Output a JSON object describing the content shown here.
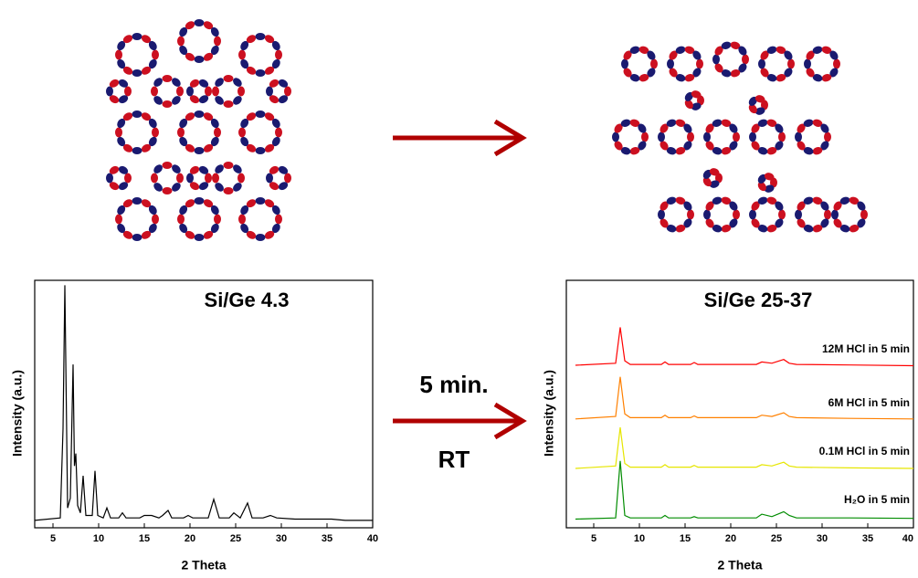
{
  "chart_data": [
    {
      "type": "line",
      "title": "Si/Ge 4.3",
      "x_label": "2 Theta",
      "y_label": "Intensity (a.u.)",
      "xlim": [
        3,
        40
      ],
      "ylim": [
        0,
        100
      ],
      "xticks": [
        5,
        10,
        15,
        20,
        25,
        30,
        35,
        40
      ],
      "x": [
        3,
        5.8,
        6.1,
        6.3,
        6.6,
        6.9,
        7.2,
        7.35,
        7.5,
        7.7,
        8.0,
        8.3,
        8.6,
        9.3,
        9.6,
        9.9,
        10.5,
        10.9,
        11.3,
        12.2,
        12.6,
        13.0,
        14.5,
        15.0,
        15.8,
        16.6,
        17.0,
        17.6,
        18.0,
        19.3,
        19.8,
        20.3,
        21.0,
        22.0,
        22.6,
        23.2,
        24.3,
        24.8,
        25.5,
        26.3,
        26.8,
        28.0,
        28.8,
        29.5,
        31.5,
        33.5,
        35.5,
        37.0,
        40
      ],
      "series": [
        {
          "color": "#000000",
          "values": [
            3,
            4,
            40,
            98,
            8,
            12,
            66,
            25,
            30,
            9,
            6,
            21,
            5,
            5,
            23,
            5,
            4,
            8,
            4,
            4,
            6,
            4,
            4,
            5,
            5,
            4,
            5,
            7,
            4,
            4,
            5,
            4,
            4,
            4,
            11.5,
            4,
            4,
            6,
            4,
            10,
            4,
            4,
            5,
            4,
            3.5,
            3.5,
            3.5,
            3,
            3
          ]
        }
      ]
    },
    {
      "type": "line",
      "title": "Si/Ge 25-37",
      "x_label": "2 Theta",
      "y_label": "Intensity (a.u.)",
      "xlim": [
        2,
        40
      ],
      "ylim": [
        0,
        100
      ],
      "xticks": [
        5,
        10,
        15,
        20,
        25,
        30,
        35,
        40
      ],
      "x": [
        3,
        7.4,
        7.9,
        8.4,
        9.0,
        12.4,
        12.8,
        13.2,
        15.6,
        16.0,
        16.4,
        22.8,
        23.4,
        24.5,
        25.8,
        26.4,
        27.2,
        33,
        40
      ],
      "series": [
        {
          "name": "12M HCl in 5 min",
          "color": "#ff0000",
          "values": [
            65.7,
            66.5,
            81,
            67.5,
            66,
            66,
            67,
            66,
            66,
            66.8,
            66,
            66,
            67,
            66.5,
            68,
            66.5,
            66,
            65.8,
            65.5
          ]
        },
        {
          "name": "6M HCl in 5 min",
          "color": "#ff8000",
          "values": [
            44,
            45,
            61,
            46,
            44.5,
            44.5,
            45.5,
            44.5,
            44.5,
            45.2,
            44.5,
            44.5,
            45.5,
            45,
            46.5,
            45,
            44.5,
            44.2,
            44
          ]
        },
        {
          "name": "0.1M HCl in 5 min",
          "color": "#e6e600",
          "values": [
            24,
            25,
            40.6,
            26,
            24.5,
            24.5,
            25.5,
            24.5,
            24.5,
            25.2,
            24.5,
            24.5,
            25.5,
            25,
            26.5,
            25,
            24.5,
            24.2,
            24
          ]
        },
        {
          "name": "H₂O in 5 min",
          "color": "#008c00",
          "values": [
            3.5,
            4,
            27,
            5,
            4,
            4,
            5,
            4,
            4,
            4.5,
            4,
            4,
            5.5,
            4.5,
            6.5,
            5,
            4,
            4,
            3.8
          ]
        }
      ]
    }
  ],
  "annotations": [
    "5 min.",
    "RT"
  ]
}
